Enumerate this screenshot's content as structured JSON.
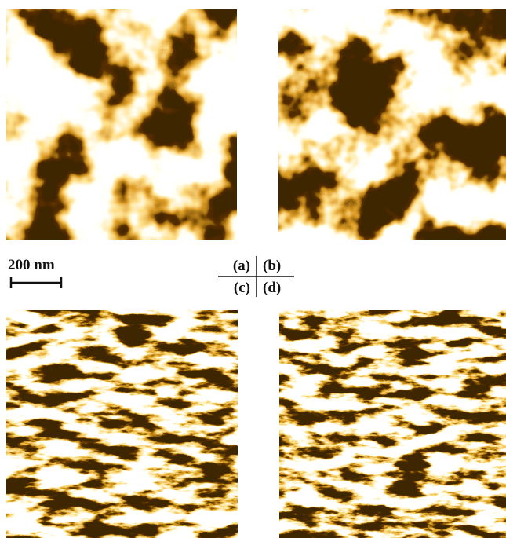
{
  "scale_bar": {
    "label": "200 nm"
  },
  "panels": [
    {
      "label": "(a)"
    },
    {
      "label": "(b)"
    },
    {
      "label": "(c)"
    },
    {
      "label": "(d)"
    }
  ]
}
